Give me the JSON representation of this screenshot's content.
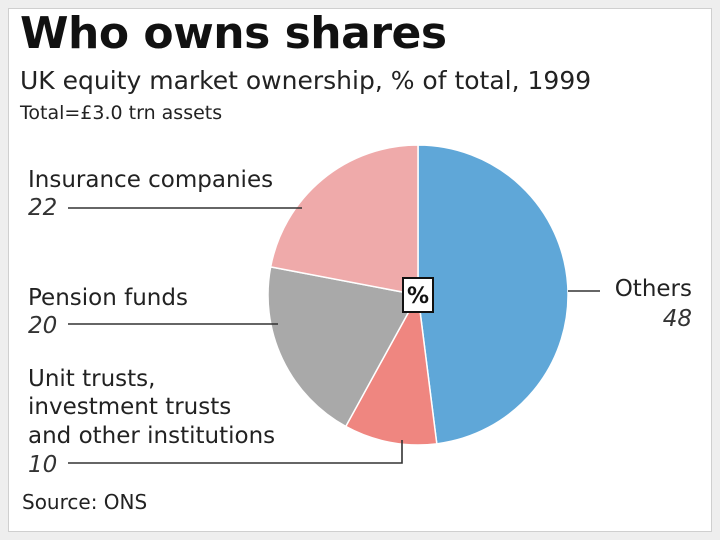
{
  "chart_data": {
    "type": "pie",
    "title": "Who owns shares",
    "subtitle": "UK equity market ownership, % of total, 1999",
    "note": "Total=£3.0 trn assets",
    "source": "Source: ONS",
    "center_label": "%",
    "slices": [
      {
        "label": "Others",
        "value": 48,
        "value_label": "48",
        "color": "#5fa7d8"
      },
      {
        "label": "Unit trusts, investment trusts and other institutions",
        "label_lines": [
          "Unit trusts,",
          "investment trusts",
          "and other institutions"
        ],
        "value": 10,
        "value_label": "10",
        "color": "#ef8680"
      },
      {
        "label": "Pension funds",
        "value": 20,
        "value_label": "20",
        "color": "#a9a9a9"
      },
      {
        "label": "Insurance companies",
        "value": 22,
        "value_label": "22",
        "color": "#efaaaa"
      }
    ]
  }
}
